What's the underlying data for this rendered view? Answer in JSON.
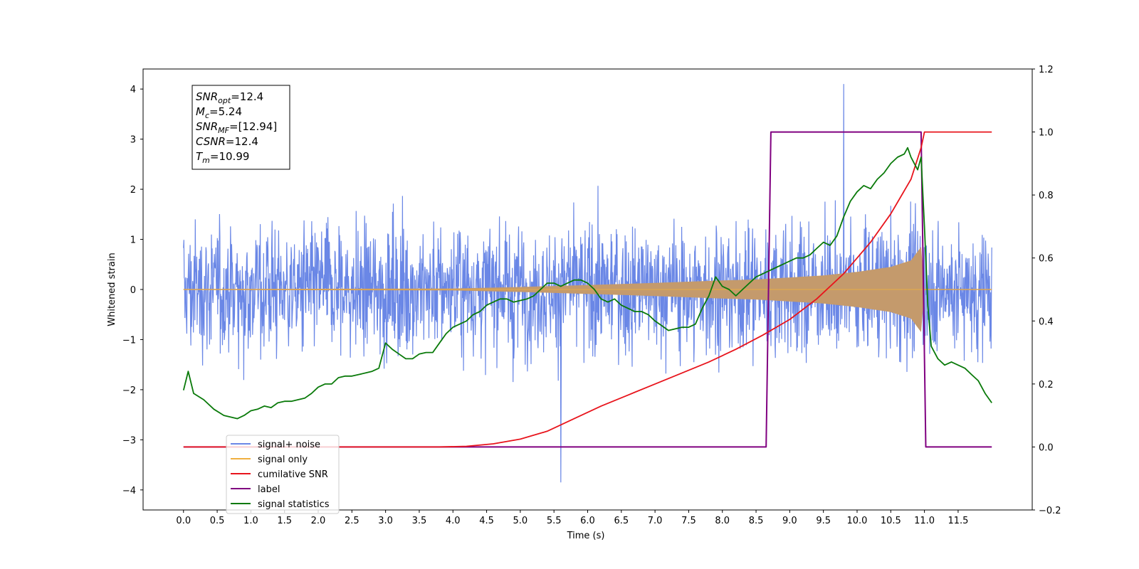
{
  "chart_data": {
    "type": "line",
    "xlabel": "Time (s)",
    "ylabel": "Whitened strain",
    "xlim": [
      -0.6,
      12.6
    ],
    "ylim": [
      -4.4,
      4.4
    ],
    "y2lim": [
      -0.2,
      1.2
    ],
    "x_ticks": [
      "0.0",
      "0.5",
      "1.0",
      "1.5",
      "2.0",
      "2.5",
      "3.0",
      "3.5",
      "4.0",
      "4.5",
      "5.0",
      "5.5",
      "6.0",
      "6.5",
      "7.0",
      "7.5",
      "8.0",
      "8.5",
      "9.0",
      "9.5",
      "10.0",
      "10.5",
      "11.0",
      "11.5"
    ],
    "y_ticks": [
      "4",
      "3",
      "2",
      "1",
      "0",
      "−1",
      "−2",
      "−3",
      "−4"
    ],
    "y2_ticks": [
      "1.2",
      "1.0",
      "0.8",
      "0.6",
      "0.4",
      "0.2",
      "0.0",
      "−0.2"
    ],
    "grid": false,
    "legend_position": "lower-left",
    "colors": {
      "noise": "#6a87e6",
      "signal": "#c49a6c",
      "signal_line": "#f0b040",
      "snr": "#e8141c",
      "label": "#800080",
      "stats": "#0a7a0a"
    },
    "annotation": [
      {
        "sym": "SNR",
        "sub": "opt",
        "val": "=12.4"
      },
      {
        "sym": "M",
        "sub": "c",
        "val": "=5.24"
      },
      {
        "sym": "SNR",
        "sub": "MF",
        "val": "=[12.94]"
      },
      {
        "sym": "CSNR",
        "sub": "",
        "val": "=12.4"
      },
      {
        "sym": "T",
        "sub": "m",
        "val": "=10.99"
      }
    ],
    "series": [
      {
        "name": "signal+ noise",
        "axis": "left",
        "x_range": [
          0.0,
          12.0
        ],
        "typical_envelope": 1.6,
        "max": 4.1,
        "min": -3.85
      },
      {
        "name": "signal only",
        "axis": "left",
        "envelope": [
          [
            0.0,
            0.01
          ],
          [
            4.0,
            0.02
          ],
          [
            5.0,
            0.05
          ],
          [
            6.0,
            0.09
          ],
          [
            7.0,
            0.13
          ],
          [
            8.0,
            0.18
          ],
          [
            8.5,
            0.2
          ],
          [
            9.0,
            0.24
          ],
          [
            9.5,
            0.28
          ],
          [
            10.0,
            0.35
          ],
          [
            10.5,
            0.45
          ],
          [
            10.8,
            0.58
          ],
          [
            10.95,
            0.85
          ],
          [
            11.0,
            0.01
          ],
          [
            12.0,
            0.01
          ]
        ]
      },
      {
        "name": "cumilative SNR",
        "axis": "right",
        "x": [
          0,
          3.8,
          4.2,
          4.6,
          5.0,
          5.4,
          5.8,
          6.2,
          6.6,
          7.0,
          7.4,
          7.8,
          8.2,
          8.6,
          9.0,
          9.4,
          9.8,
          10.2,
          10.5,
          10.8,
          10.95,
          11.0,
          12.0
        ],
        "y": [
          0,
          0,
          0.002,
          0.01,
          0.025,
          0.05,
          0.09,
          0.13,
          0.165,
          0.2,
          0.235,
          0.27,
          0.31,
          0.355,
          0.405,
          0.47,
          0.55,
          0.65,
          0.74,
          0.85,
          0.95,
          1.0,
          1.0
        ]
      },
      {
        "name": "label",
        "axis": "right",
        "x": [
          0,
          8.65,
          8.72,
          10.95,
          11.02,
          12.0
        ],
        "y": [
          0,
          0,
          1,
          1,
          0,
          0
        ]
      },
      {
        "name": "signal statistics",
        "axis": "right",
        "x": [
          0,
          0.07,
          0.15,
          0.3,
          0.45,
          0.6,
          0.7,
          0.8,
          0.9,
          1.0,
          1.1,
          1.2,
          1.3,
          1.4,
          1.5,
          1.6,
          1.7,
          1.8,
          1.9,
          2.0,
          2.1,
          2.2,
          2.3,
          2.4,
          2.5,
          2.6,
          2.7,
          2.8,
          2.9,
          3.0,
          3.1,
          3.2,
          3.3,
          3.4,
          3.5,
          3.6,
          3.7,
          3.8,
          3.9,
          4.0,
          4.1,
          4.2,
          4.3,
          4.4,
          4.5,
          4.6,
          4.7,
          4.8,
          4.9,
          5.0,
          5.1,
          5.2,
          5.3,
          5.4,
          5.5,
          5.6,
          5.7,
          5.8,
          5.9,
          6.0,
          6.1,
          6.2,
          6.3,
          6.4,
          6.5,
          6.6,
          6.7,
          6.8,
          6.9,
          7.0,
          7.1,
          7.2,
          7.3,
          7.4,
          7.5,
          7.6,
          7.7,
          7.8,
          7.9,
          8.0,
          8.1,
          8.2,
          8.3,
          8.4,
          8.5,
          8.6,
          8.7,
          8.8,
          8.9,
          9.0,
          9.1,
          9.2,
          9.3,
          9.4,
          9.5,
          9.6,
          9.7,
          9.8,
          9.9,
          10.0,
          10.1,
          10.2,
          10.3,
          10.4,
          10.5,
          10.6,
          10.7,
          10.75,
          10.8,
          10.85,
          10.9,
          10.95,
          11.0,
          11.05,
          11.1,
          11.2,
          11.3,
          11.4,
          11.5,
          11.6,
          11.7,
          11.8,
          11.9,
          12.0
        ],
        "y": [
          0.18,
          0.24,
          0.17,
          0.15,
          0.12,
          0.1,
          0.095,
          0.09,
          0.1,
          0.115,
          0.12,
          0.13,
          0.125,
          0.14,
          0.145,
          0.145,
          0.15,
          0.155,
          0.17,
          0.19,
          0.2,
          0.2,
          0.22,
          0.225,
          0.225,
          0.23,
          0.235,
          0.24,
          0.25,
          0.33,
          0.31,
          0.295,
          0.28,
          0.28,
          0.295,
          0.3,
          0.3,
          0.33,
          0.36,
          0.38,
          0.39,
          0.4,
          0.42,
          0.43,
          0.45,
          0.46,
          0.47,
          0.47,
          0.46,
          0.465,
          0.47,
          0.48,
          0.5,
          0.52,
          0.52,
          0.51,
          0.52,
          0.53,
          0.53,
          0.52,
          0.5,
          0.47,
          0.46,
          0.47,
          0.45,
          0.44,
          0.43,
          0.43,
          0.42,
          0.4,
          0.385,
          0.37,
          0.375,
          0.38,
          0.38,
          0.39,
          0.44,
          0.48,
          0.54,
          0.51,
          0.5,
          0.48,
          0.5,
          0.52,
          0.54,
          0.55,
          0.56,
          0.57,
          0.58,
          0.59,
          0.6,
          0.6,
          0.61,
          0.63,
          0.65,
          0.64,
          0.67,
          0.73,
          0.78,
          0.81,
          0.83,
          0.82,
          0.85,
          0.87,
          0.9,
          0.92,
          0.93,
          0.95,
          0.92,
          0.9,
          0.88,
          0.92,
          0.7,
          0.45,
          0.32,
          0.28,
          0.26,
          0.27,
          0.26,
          0.25,
          0.23,
          0.21,
          0.17,
          0.14
        ]
      }
    ]
  }
}
